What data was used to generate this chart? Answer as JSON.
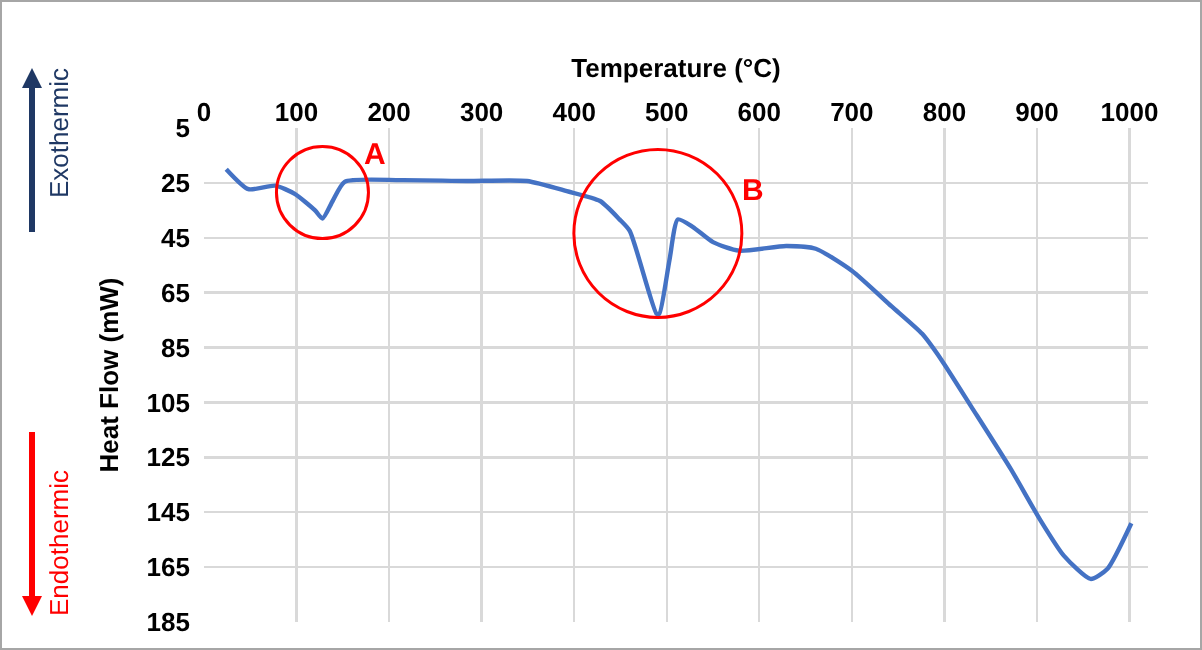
{
  "chart_data": {
    "type": "line",
    "xlabel": "Temperature (°C)",
    "ylabel": "Heat Flow (mW)",
    "x": [
      24,
      48,
      77,
      98,
      120,
      128,
      139,
      152,
      213,
      284,
      349,
      392,
      428,
      449,
      460,
      489,
      492,
      503,
      512,
      528,
      550,
      578,
      629,
      661,
      700,
      743,
      776,
      797,
      829,
      872,
      903,
      929,
      958,
      976,
      1002
    ],
    "series": [
      {
        "color": "#4472c4",
        "values": [
          20,
          27.3,
          26,
          29,
          35,
          38,
          31.6,
          24.6,
          24,
          24.3,
          24.3,
          28,
          31.6,
          38.3,
          42.5,
          72.7,
          72.7,
          53,
          38.3,
          41,
          46.6,
          49.7,
          48,
          49,
          57,
          70,
          80,
          89.6,
          106.5,
          129.4,
          147.5,
          160.8,
          169.3,
          165.7,
          149
        ]
      }
    ],
    "xlim": [
      0,
      1020
    ],
    "xticks": [
      0,
      100,
      200,
      300,
      400,
      500,
      600,
      700,
      800,
      900,
      1000
    ],
    "ylim": [
      185,
      5
    ],
    "yticks": [
      5,
      25,
      45,
      65,
      85,
      105,
      125,
      145,
      165,
      185
    ],
    "grid": true,
    "marker": "none",
    "line_style": "solid",
    "annotations": [
      {
        "text": "A",
        "x": 128,
        "y": 38
      },
      {
        "text": "B",
        "x": 512,
        "y": 38.3
      },
      "Exothermic",
      "Endothermic"
    ]
  }
}
